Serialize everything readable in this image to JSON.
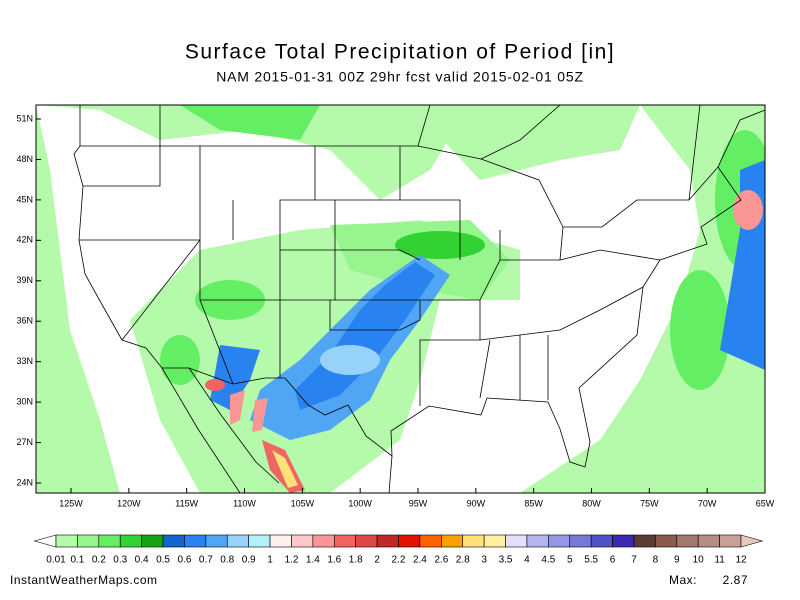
{
  "header": {
    "title": "Surface Total Precipitation of Period [in]",
    "subtitle": "NAM 2015-01-31 00Z 29hr fcst valid 2015-02-01 05Z"
  },
  "map": {
    "lat_labels": [
      "51N",
      "48N",
      "45N",
      "42N",
      "39N",
      "36N",
      "33N",
      "30N",
      "27N",
      "24N"
    ],
    "lon_labels": [
      "125W",
      "120W",
      "115W",
      "110W",
      "105W",
      "100W",
      "95W",
      "90W",
      "85W",
      "80W",
      "75W",
      "70W",
      "65W"
    ]
  },
  "colorbar": {
    "levels": [
      0.01,
      0.1,
      0.2,
      0.3,
      0.4,
      0.5,
      0.6,
      0.7,
      0.8,
      0.9,
      1,
      1.2,
      1.4,
      1.6,
      1.8,
      2,
      2.2,
      2.4,
      2.6,
      2.8,
      3,
      3.5,
      4,
      4.5,
      5,
      5.5,
      6,
      7,
      8,
      9,
      10,
      11,
      12
    ],
    "colors": [
      "#ffffff",
      "#b4faaa",
      "#96f58c",
      "#64ee64",
      "#32d232",
      "#14a514",
      "#1464d2",
      "#2882f0",
      "#50a5f5",
      "#96d2fa",
      "#b4f0fa",
      "#fff0f0",
      "#ffc8c8",
      "#fa9696",
      "#f06464",
      "#e04848",
      "#c02828",
      "#e11400",
      "#ff6000",
      "#ffa000",
      "#ffe178",
      "#fff0a0",
      "#e1e1fa",
      "#b4b4f0",
      "#9696e6",
      "#7878dc",
      "#5050c8",
      "#3c28b4",
      "#5a3c32",
      "#8c5a4b",
      "#a0786e",
      "#b48c82",
      "#c8a096",
      "#e6c8be"
    ]
  },
  "footer": {
    "source": "InstantWeatherMaps.com",
    "max_label": "Max:",
    "max_value": 2.87
  }
}
